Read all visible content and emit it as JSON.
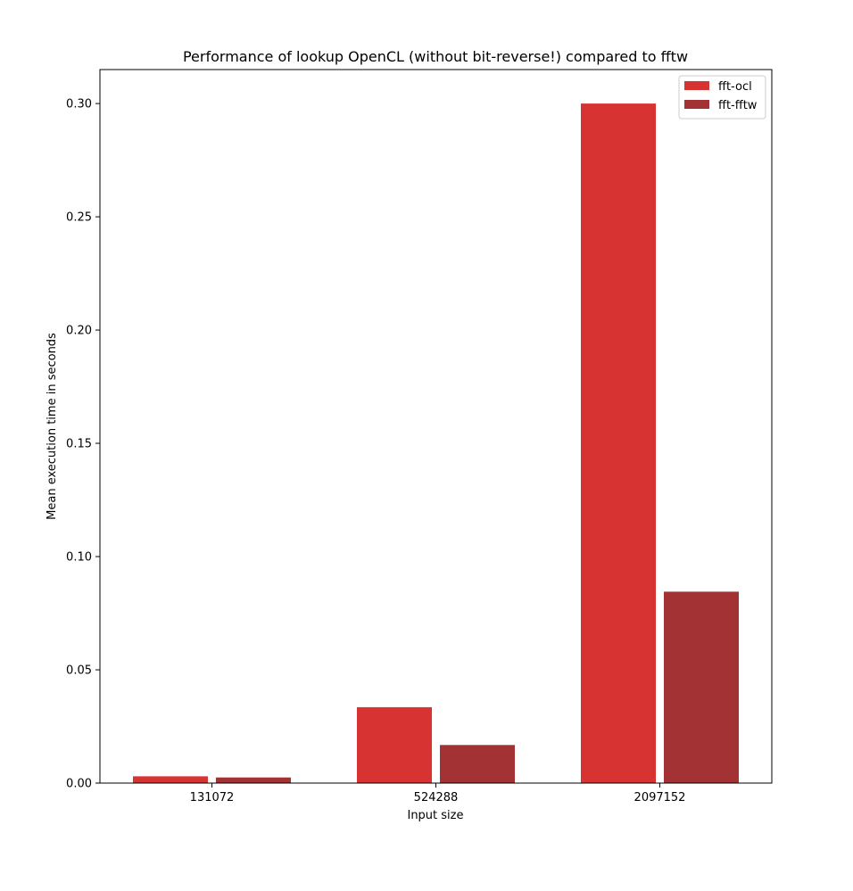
{
  "chart_data": {
    "type": "bar",
    "title": "Performance of lookup OpenCL (without bit-reverse!) compared to fftw",
    "xlabel": "Input size",
    "ylabel": "Mean execution time in seconds",
    "categories": [
      "131072",
      "524288",
      "2097152"
    ],
    "series": [
      {
        "name": "fft-ocl",
        "color": "#d73333",
        "values": [
          0.003,
          0.0335,
          0.3
        ]
      },
      {
        "name": "fft-fftw",
        "color": "#a23234",
        "values": [
          0.0025,
          0.0168,
          0.0845
        ]
      }
    ],
    "ylim": [
      0,
      0.315
    ],
    "yticks": [
      "0.00",
      "0.05",
      "0.10",
      "0.15",
      "0.20",
      "0.25",
      "0.30"
    ],
    "grid": false,
    "legend_position": "top-right"
  }
}
